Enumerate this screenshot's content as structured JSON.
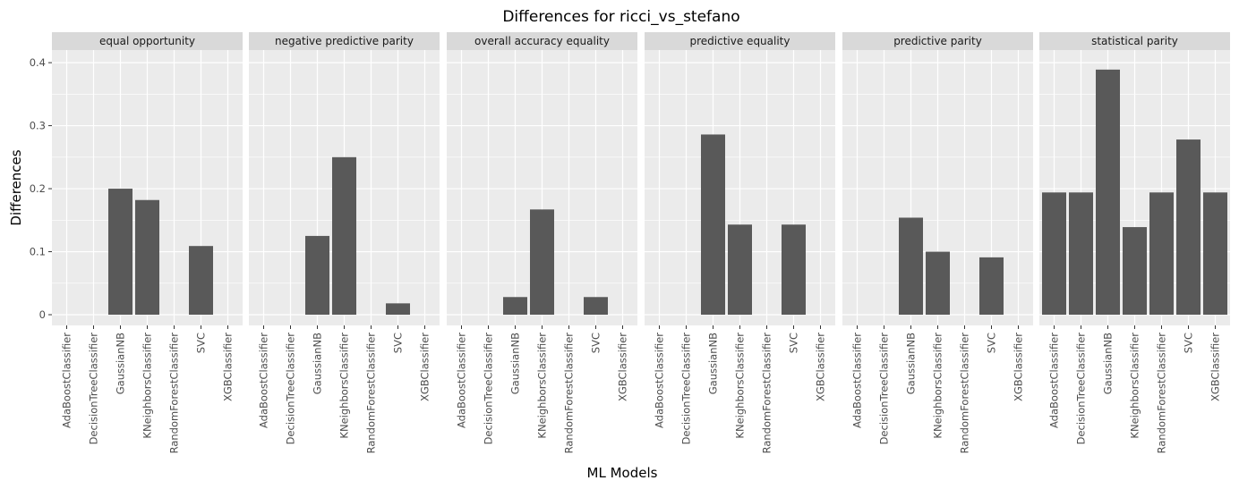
{
  "chart_data": {
    "type": "bar",
    "title": "Differences for ricci_vs_stefano",
    "xlabel": "ML Models",
    "ylabel": "Differences",
    "ylim": [
      -0.017,
      0.42
    ],
    "yticks": [
      0,
      0.1,
      0.2,
      0.3,
      0.4
    ],
    "ytick_labels": [
      "0",
      "0.1",
      "0.2",
      "0.3",
      "0.4"
    ],
    "grid": true,
    "bar_color": "#595959",
    "panel_background": "#ebebeb",
    "strip_background": "#d9d9d9",
    "categories": [
      "AdaBoostClassifier",
      "DecisionTreeClassifier",
      "GaussianNB",
      "KNeighborsClassifier",
      "RandomForestClassifier",
      "SVC",
      "XGBClassifier"
    ],
    "facets": [
      {
        "name": "equal opportunity",
        "values": [
          0,
          0,
          0.2,
          0.182,
          0,
          0.109,
          0
        ]
      },
      {
        "name": "negative predictive parity",
        "values": [
          0,
          0,
          0.125,
          0.25,
          0,
          0.018,
          0
        ]
      },
      {
        "name": "overall accuracy equality",
        "values": [
          0,
          0,
          0.028,
          0.167,
          0,
          0.028,
          0
        ]
      },
      {
        "name": "predictive equality",
        "values": [
          0,
          0,
          0.286,
          0.143,
          0,
          0.143,
          0
        ]
      },
      {
        "name": "predictive parity",
        "values": [
          0,
          0,
          0.154,
          0.1,
          0,
          0.091,
          0
        ]
      },
      {
        "name": "statistical parity",
        "values": [
          0.194,
          0.194,
          0.389,
          0.139,
          0.194,
          0.278,
          0.194
        ]
      }
    ]
  }
}
